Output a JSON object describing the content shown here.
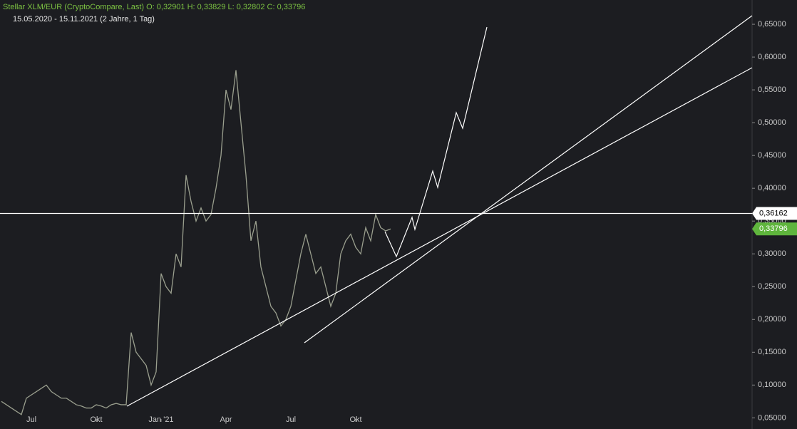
{
  "chart_data": {
    "type": "line",
    "title": "Stellar XLM/EUR (CryptoCompare, Last)  O: 0,32901  H: 0,33829  L: 0,32802  C: 0,33796",
    "subtitle": "15.05.2020 - 15.11.2021  (2 Jahre, 1 Tag)",
    "categories": [
      null,
      null,
      null,
      null,
      null,
      null,
      "Jul",
      null,
      null,
      null,
      null,
      null,
      null,
      null,
      null,
      null,
      null,
      null,
      null,
      "Okt",
      null,
      null,
      null,
      null,
      null,
      null,
      null,
      null,
      null,
      null,
      null,
      null,
      "Jan '21",
      null,
      null,
      null,
      null,
      null,
      null,
      null,
      null,
      null,
      null,
      null,
      null,
      "Apr",
      null,
      null,
      null,
      null,
      null,
      null,
      null,
      null,
      null,
      null,
      null,
      null,
      "Jul",
      null,
      null,
      null,
      null,
      null,
      null,
      null,
      null,
      null,
      null,
      null,
      null,
      "Okt",
      null,
      null,
      null,
      null,
      null,
      null,
      null
    ],
    "series": [
      {
        "name": "XLM/EUR",
        "color": "#9a9f8e",
        "values": [
          0.075,
          0.07,
          0.065,
          0.06,
          0.055,
          0.08,
          0.085,
          0.09,
          0.095,
          0.1,
          0.09,
          0.085,
          0.08,
          0.08,
          0.075,
          0.07,
          0.068,
          0.065,
          0.065,
          0.07,
          0.068,
          0.065,
          0.07,
          0.072,
          0.07,
          0.07,
          0.18,
          0.15,
          0.14,
          0.13,
          0.1,
          0.12,
          0.27,
          0.25,
          0.24,
          0.3,
          0.28,
          0.42,
          0.38,
          0.35,
          0.37,
          0.35,
          0.36,
          0.4,
          0.45,
          0.55,
          0.52,
          0.58,
          0.5,
          0.42,
          0.32,
          0.35,
          0.28,
          0.25,
          0.22,
          0.21,
          0.19,
          0.2,
          0.22,
          0.26,
          0.3,
          0.33,
          0.3,
          0.27,
          0.28,
          0.25,
          0.22,
          0.24,
          0.3,
          0.32,
          0.33,
          0.31,
          0.3,
          0.34,
          0.32,
          0.36,
          0.34,
          0.335,
          0.33796
        ]
      }
    ],
    "ylim": [
      0.033,
      0.687
    ],
    "yticks": [
      {
        "value": 0.05,
        "label": "0,05000"
      },
      {
        "value": 0.1,
        "label": "0,10000"
      },
      {
        "value": 0.15,
        "label": "0,15000"
      },
      {
        "value": 0.2,
        "label": "0,20000"
      },
      {
        "value": 0.25,
        "label": "0,25000"
      },
      {
        "value": 0.3,
        "label": "0,30000"
      },
      {
        "value": 0.35,
        "label": "0,35000"
      },
      {
        "value": 0.4,
        "label": "0,40000"
      },
      {
        "value": 0.45,
        "label": "0,45000"
      },
      {
        "value": 0.5,
        "label": "0,50000"
      },
      {
        "value": 0.55,
        "label": "0,55000"
      },
      {
        "value": 0.6,
        "label": "0,60000"
      },
      {
        "value": 0.65,
        "label": "0,65000"
      }
    ],
    "hline": {
      "value": 0.36162,
      "label": "0,36162",
      "color": "#ffffff"
    },
    "last_price": {
      "value": 0.33796,
      "label": "0,33796",
      "color": "#5fb53d"
    }
  }
}
